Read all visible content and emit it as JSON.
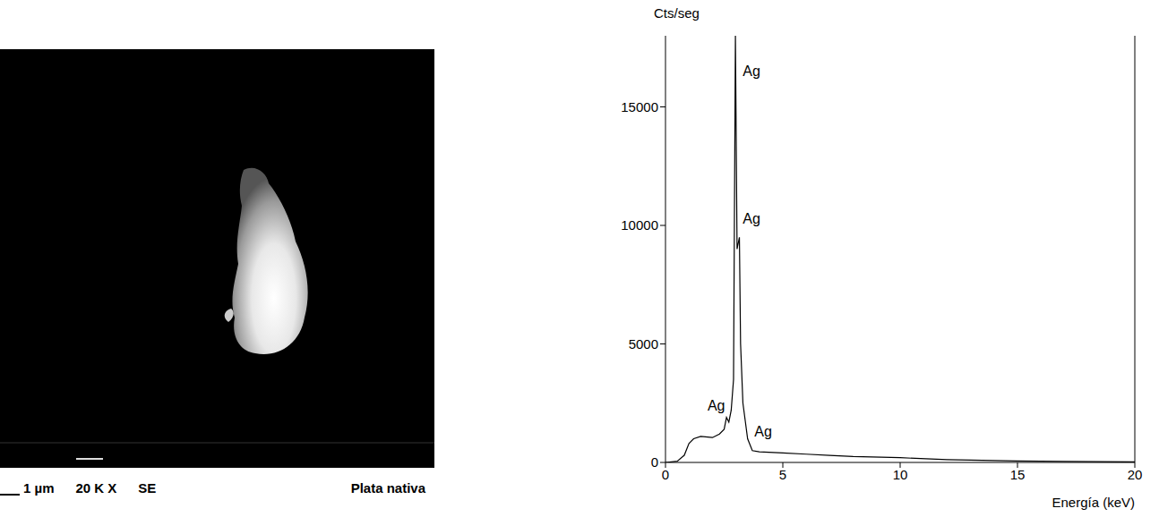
{
  "micrograph": {
    "scale_bar": "1 µm",
    "magnification": "20 K X",
    "detector": "SE",
    "caption": "Plata nativa"
  },
  "chart_data": {
    "type": "line",
    "y_label": "Cts/seg",
    "x_label": "Energía (keV)",
    "color": "#000000",
    "grid": false,
    "xlim": [
      0,
      20
    ],
    "xticks": [
      0,
      5,
      10,
      15,
      20
    ],
    "ylim": [
      0,
      18000
    ],
    "yticks": [
      0,
      5000,
      10000,
      15000
    ],
    "x": [
      0,
      0.5,
      0.8,
      1.0,
      1.2,
      1.5,
      2.0,
      2.3,
      2.5,
      2.6,
      2.7,
      2.8,
      2.9,
      2.98,
      3.05,
      3.15,
      3.2,
      3.3,
      3.5,
      3.7,
      4,
      5,
      6,
      7,
      8,
      10,
      12,
      15,
      17,
      20
    ],
    "values": [
      0,
      50,
      300,
      800,
      1000,
      1100,
      1050,
      1200,
      1400,
      1900,
      1700,
      2200,
      3500,
      18000,
      9000,
      9500,
      5000,
      2500,
      1000,
      500,
      450,
      400,
      350,
      300,
      250,
      200,
      120,
      60,
      40,
      20
    ],
    "annotations": [
      {
        "text": "Ag",
        "x": 3.1,
        "y": 16500
      },
      {
        "text": "Ag",
        "x": 3.1,
        "y": 10300
      },
      {
        "text": "Ag",
        "x": 1.6,
        "y": 2400
      },
      {
        "text": "Ag",
        "x": 3.6,
        "y": 1300
      }
    ]
  }
}
